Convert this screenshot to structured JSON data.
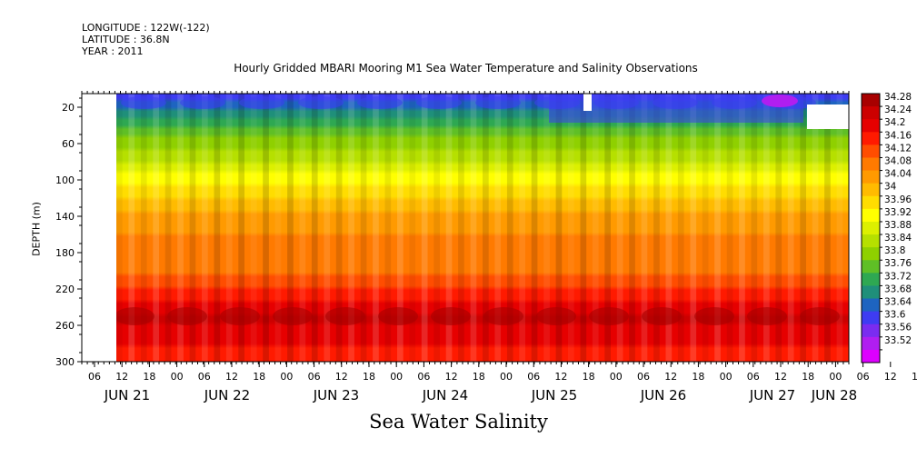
{
  "header": {
    "longitude": "LONGITUDE : 122W(-122)",
    "latitude": "LATITUDE : 36.8N",
    "year": "YEAR : 2011"
  },
  "chart_data": {
    "type": "heatmap",
    "title": "Hourly Gridded MBARI Mooring M1 Sea Water Temperature and Salinity Observations",
    "main_title": "Sea Water Salinity",
    "ylabel": "DEPTH (m)",
    "xlabel": "",
    "y_ticks": [
      20,
      60,
      100,
      140,
      180,
      220,
      260,
      300
    ],
    "ylim": [
      300,
      5
    ],
    "x_hour_ticks": [
      "06",
      "12",
      "18",
      "00",
      "06",
      "12",
      "18",
      "00",
      "06",
      "12",
      "18",
      "00",
      "06",
      "12",
      "18",
      "00",
      "06",
      "12",
      "18",
      "00",
      "06",
      "12",
      "18",
      "00",
      "06",
      "12",
      "18",
      "00",
      "06",
      "12",
      "18",
      "00"
    ],
    "x_day_labels": [
      "JUN 21",
      "JUN 22",
      "JUN 23",
      "JUN 24",
      "JUN 25",
      "JUN 26",
      "JUN 27",
      "JUN 28"
    ],
    "colorbar_levels": [
      34.28,
      34.24,
      34.2,
      34.16,
      34.12,
      34.08,
      34.04,
      34,
      33.96,
      33.92,
      33.88,
      33.84,
      33.8,
      33.76,
      33.72,
      33.68,
      33.64,
      33.6,
      33.56,
      33.52
    ],
    "colorbar_colors": [
      "#a80000",
      "#cc0000",
      "#e60000",
      "#ff1a00",
      "#ff4d00",
      "#ff7a00",
      "#ff9a00",
      "#ffbb00",
      "#ffdd00",
      "#ffff00",
      "#dcf000",
      "#b6e000",
      "#8fd000",
      "#5fbf26",
      "#2ea852",
      "#1f8f7a",
      "#1e64c0",
      "#3e3cf2",
      "#7a2cf0",
      "#b01ef0",
      "#dd00ff"
    ],
    "depth_profile": [
      {
        "depth": 10,
        "salinity": 33.62
      },
      {
        "depth": 25,
        "salinity": 33.7
      },
      {
        "depth": 40,
        "salinity": 33.76
      },
      {
        "depth": 60,
        "salinity": 33.82
      },
      {
        "depth": 80,
        "salinity": 33.88
      },
      {
        "depth": 100,
        "salinity": 33.94
      },
      {
        "depth": 120,
        "salinity": 34.0
      },
      {
        "depth": 140,
        "salinity": 34.06
      },
      {
        "depth": 160,
        "salinity": 34.08
      },
      {
        "depth": 180,
        "salinity": 34.08
      },
      {
        "depth": 200,
        "salinity": 34.11
      },
      {
        "depth": 220,
        "salinity": 34.16
      },
      {
        "depth": 240,
        "salinity": 34.22
      },
      {
        "depth": 255,
        "salinity": 34.25
      },
      {
        "depth": 270,
        "salinity": 34.22
      },
      {
        "depth": 300,
        "salinity": 34.17
      }
    ]
  }
}
